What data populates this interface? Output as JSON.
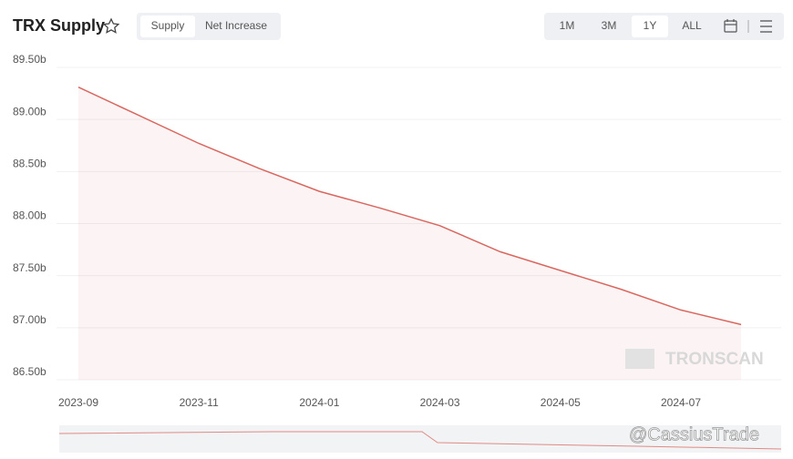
{
  "chart_data": {
    "type": "area",
    "title": "TRX Supply",
    "x": [
      "2023-09",
      "2023-10",
      "2023-11",
      "2023-12",
      "2024-01",
      "2024-02",
      "2024-03",
      "2024-04",
      "2024-05",
      "2024-06",
      "2024-07",
      "2024-08"
    ],
    "values": [
      89.31,
      89.04,
      88.77,
      88.53,
      88.31,
      88.15,
      87.98,
      87.73,
      87.55,
      87.37,
      87.17,
      87.03
    ],
    "color": "#d9675f",
    "ylim": [
      86.5,
      89.5
    ],
    "yticks": [
      {
        "value": 86.5,
        "label": "86.50b"
      },
      {
        "value": 87,
        "label": "87.00b"
      },
      {
        "value": 87.5,
        "label": "87.50b"
      },
      {
        "value": 88,
        "label": "88.00b"
      },
      {
        "value": 88.5,
        "label": "88.50b"
      },
      {
        "value": 89,
        "label": "89.00b"
      },
      {
        "value": 89.5,
        "label": "89.50b"
      }
    ],
    "xticks": [
      "2023-09",
      "2023-11",
      "2024-01",
      "2024-03",
      "2024-05",
      "2024-07"
    ],
    "grid": true
  },
  "ui": {
    "tabs": [
      "Supply",
      "Net Increase"
    ],
    "ranges": [
      "1M",
      "3M",
      "1Y",
      "ALL"
    ],
    "watermark": "TRONSCAN",
    "credit": "@CassiusTrade"
  }
}
